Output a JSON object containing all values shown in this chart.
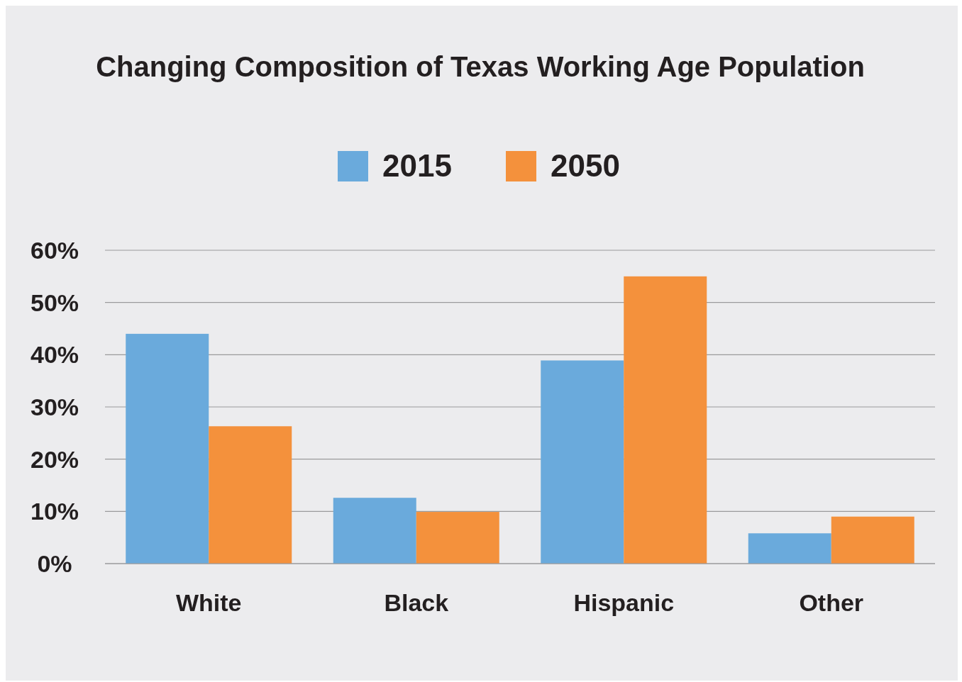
{
  "chart_data": {
    "type": "bar",
    "title": "Changing Composition of Texas Working Age Population",
    "categories": [
      "White",
      "Black",
      "Hispanic",
      "Other"
    ],
    "series": [
      {
        "name": "2015",
        "color": "#6aaadc",
        "values": [
          44,
          12.6,
          38.9,
          5.8
        ]
      },
      {
        "name": "2050",
        "color": "#f4913c",
        "values": [
          26.3,
          9.9,
          55,
          9
        ]
      }
    ],
    "ylim": [
      0,
      60
    ],
    "yticks": [
      {
        "value": 0,
        "label": "0%"
      },
      {
        "value": 10,
        "label": "10%"
      },
      {
        "value": 20,
        "label": "20%"
      },
      {
        "value": 30,
        "label": "30%"
      },
      {
        "value": 40,
        "label": "40%"
      },
      {
        "value": 50,
        "label": "50%"
      },
      {
        "value": 60,
        "label": "60%"
      }
    ],
    "grid": "y",
    "legend": "top"
  }
}
